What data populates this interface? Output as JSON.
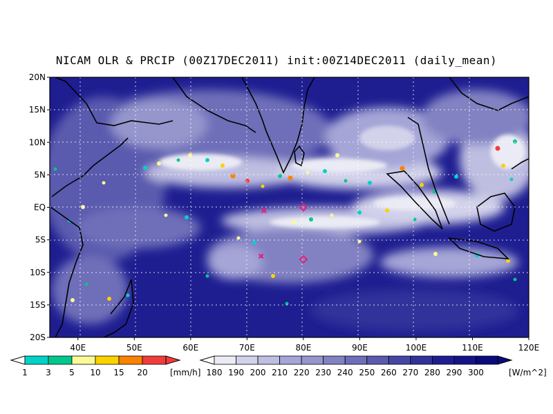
{
  "title": "NICAM OLR & PRCIP (00Z17DEC2011) init:00Z14DEC2011 (daily_mean)",
  "map": {
    "lon_range": [
      35,
      120
    ],
    "lat_range": [
      -20,
      20
    ],
    "lat_ticks": [
      "20N",
      "15N",
      "10N",
      "5N",
      "EQ",
      "5S",
      "10S",
      "15S",
      "20S"
    ],
    "lon_ticks": [
      "40E",
      "50E",
      "60E",
      "70E",
      "80E",
      "90E",
      "100E",
      "110E",
      "120E"
    ],
    "gridlines": true,
    "markers": [
      {
        "shape": "x",
        "lon": 73,
        "lat": -0.5,
        "color": "#e0207a"
      },
      {
        "shape": "diamond",
        "lon": 80,
        "lat": 0,
        "color": "#e0207a"
      },
      {
        "shape": "x",
        "lon": 72.5,
        "lat": -7.5,
        "color": "#e0207a"
      },
      {
        "shape": "diamond",
        "lon": 80,
        "lat": -8,
        "color": "#e0207a"
      }
    ]
  },
  "legend_precip": {
    "unit": "[mm/h]",
    "labels": [
      "1",
      "3",
      "5",
      "10",
      "15",
      "20"
    ],
    "colors": [
      "#00d2c8",
      "#00c88c",
      "#fafa96",
      "#fad200",
      "#fa8200",
      "#f03c3c"
    ]
  },
  "legend_olr": {
    "unit": "[W/m^2]",
    "labels": [
      "180",
      "190",
      "200",
      "210",
      "220",
      "230",
      "240",
      "250",
      "260",
      "270",
      "280",
      "290",
      "300"
    ],
    "colors": [
      "#ebebf5",
      "#d2d2eb",
      "#bebee1",
      "#a5a5d7",
      "#9696cd",
      "#8282c3",
      "#6e6eb9",
      "#5a5aaf",
      "#4646a5",
      "#32329b",
      "#1e1e91",
      "#141487",
      "#0a0a7d"
    ]
  }
}
